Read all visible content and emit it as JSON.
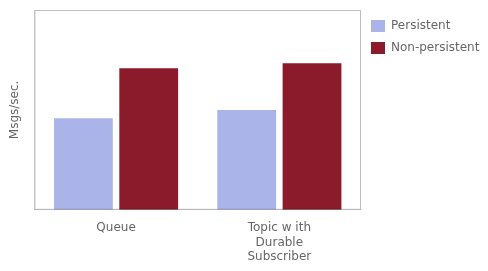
{
  "chart_data": {
    "type": "bar",
    "categories": [
      "Queue",
      "Topic w ith\nDurable\nSubscriber"
    ],
    "series": [
      {
        "name": "Persistent",
        "color": "#aab4e8",
        "values": [
          55,
          60
        ]
      },
      {
        "name": "Non-persistent",
        "color": "#8b1a2a",
        "values": [
          85,
          88
        ]
      }
    ],
    "ylabel": "Msgs/sec.",
    "ylim": [
      0,
      120
    ],
    "yticks": [],
    "grid": false,
    "tick_labels": "x",
    "legend": "right"
  }
}
